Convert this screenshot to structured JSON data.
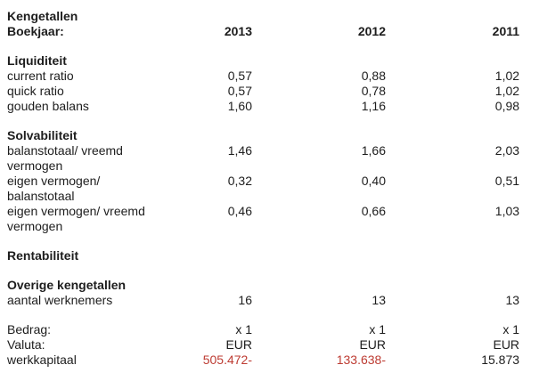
{
  "colors": {
    "text": "#1d1d1d",
    "negative": "#bd3b32"
  },
  "header": {
    "title": "Kengetallen",
    "boekjaar_label": "Boekjaar:",
    "years": [
      "2013",
      "2012",
      "2011"
    ]
  },
  "sections": [
    {
      "title": "Liquiditeit",
      "rows": [
        {
          "label": "current ratio",
          "values": [
            "0,57",
            "0,88",
            "1,02"
          ]
        },
        {
          "label": "quick ratio",
          "values": [
            "0,57",
            "0,78",
            "1,02"
          ]
        },
        {
          "label": "gouden balans",
          "values": [
            "1,60",
            "1,16",
            "0,98"
          ]
        }
      ]
    },
    {
      "title": "Solvabiliteit",
      "rows": [
        {
          "label": "balanstotaal/ vreemd vermogen",
          "values": [
            "1,46",
            "1,66",
            "2,03"
          ]
        },
        {
          "label": "eigen vermogen/ balanstotaal",
          "values": [
            "0,32",
            "0,40",
            "0,51"
          ]
        },
        {
          "label": "eigen vermogen/ vreemd vermogen",
          "values": [
            "0,46",
            "0,66",
            "1,03"
          ]
        }
      ]
    },
    {
      "title": "Rentabiliteit",
      "rows": []
    },
    {
      "title": "Overige kengetallen",
      "rows": [
        {
          "label": "aantal werknemers",
          "values": [
            "16",
            "13",
            "13"
          ]
        }
      ]
    }
  ],
  "footer": {
    "rows": [
      {
        "label": "Bedrag:",
        "values": [
          "x 1",
          "x 1",
          "x 1"
        ]
      },
      {
        "label": "Valuta:",
        "values": [
          "EUR",
          "EUR",
          "EUR"
        ]
      },
      {
        "label": "werkkapitaal",
        "values": [
          "505.472-",
          "133.638-",
          "15.873"
        ],
        "negative": [
          true,
          true,
          false
        ]
      }
    ]
  }
}
